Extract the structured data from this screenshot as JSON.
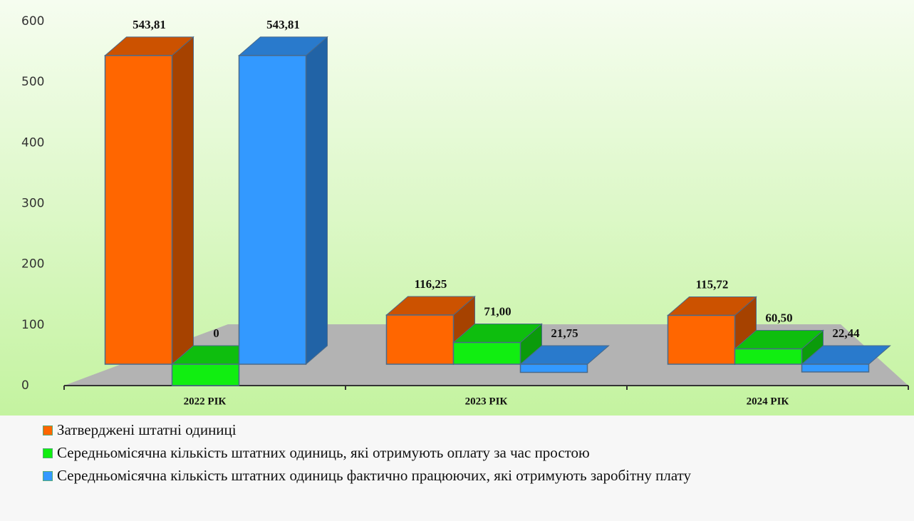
{
  "chart_data": {
    "type": "bar3d",
    "categories": [
      "2022 РІК",
      "2023 РІК",
      "2024 РІК"
    ],
    "series": [
      {
        "name": "Затверджені штатні одиниці",
        "color": "#ff6600",
        "values": [
          543.81,
          116.25,
          115.72
        ],
        "value_labels": [
          "543,81",
          "116,25",
          "115,72"
        ]
      },
      {
        "name": "Середньомісячна кількість штатних одиниць, які отримують оплату за час простою",
        "color": "#11ee11",
        "values": [
          0,
          71.0,
          60.5
        ],
        "value_labels": [
          "0",
          "71,00",
          "60,50"
        ]
      },
      {
        "name": "Середньомісячна кількість штатних одиниць фактично працюючих, які отримують заробітну плату",
        "color": "#3399ff",
        "values": [
          543.81,
          21.75,
          22.44
        ],
        "value_labels": [
          "543,81",
          "21,75",
          "22,44"
        ]
      }
    ],
    "ylim": [
      0,
      600
    ],
    "yticks": [
      0,
      100,
      200,
      300,
      400,
      500,
      600
    ]
  }
}
